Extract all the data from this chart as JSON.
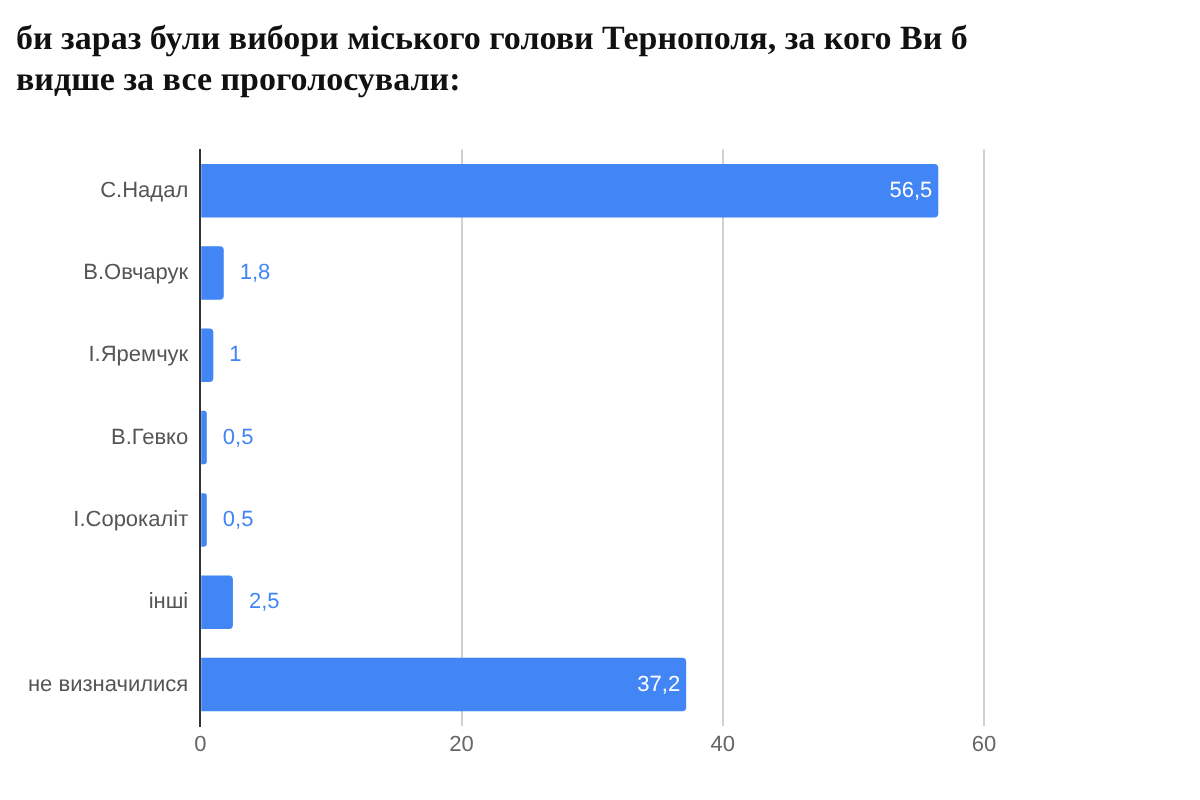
{
  "chart_data": {
    "type": "bar",
    "orientation": "horizontal",
    "title": "би зараз були вибори міського голови Тернополя, за кого Ви б\nвидше за все проголосували:",
    "categories": [
      "С.Надал",
      "В.Овчарук",
      "І.Яремчук",
      "В.Гевко",
      "І.Сорокаліт",
      "інші",
      "не визначилися"
    ],
    "values": [
      56.5,
      1.8,
      1,
      0.5,
      0.5,
      2.5,
      37.2
    ],
    "value_labels": [
      "56,5",
      "1,8",
      "1",
      "0,5",
      "0,5",
      "2,5",
      "37,2"
    ],
    "color": "#4285f4",
    "xlim": [
      0,
      60
    ],
    "xticks": [
      0,
      20,
      40,
      60
    ],
    "grid": "x"
  }
}
